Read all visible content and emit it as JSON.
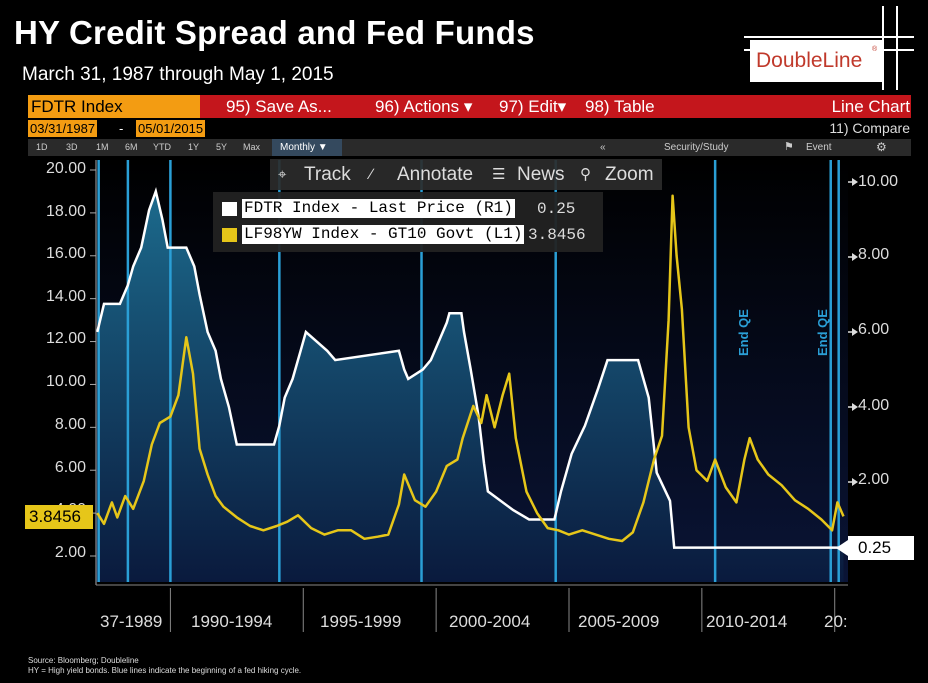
{
  "header": {
    "title": "HY Credit Spread and Fed Funds",
    "subtitle": "March 31, 1987 through May 1, 2015",
    "logo": "DoubleLine",
    "logo_mark": "®"
  },
  "terminal": {
    "ticker": "FDTR Index",
    "menu": [
      "95) Save As...",
      "96) Actions ▾",
      "97) Edit▾",
      "98) Table"
    ],
    "chart_type": "Line Chart",
    "start_date": "03/31/1987",
    "end_date": "05/01/2015",
    "date_sep": "-",
    "compare": "11) Compare",
    "timeframes": [
      "1D",
      "3D",
      "1M",
      "6M",
      "YTD",
      "1Y",
      "5Y",
      "Max"
    ],
    "frequency": "Monthly ▼",
    "right_tools": [
      "«",
      "Security/Study",
      "Event",
      "⚙"
    ],
    "tools": [
      "Track",
      "Annotate",
      "News",
      "Zoom"
    ]
  },
  "legend": {
    "items": [
      {
        "label": "FDTR Index - Last Price (R1)",
        "value": "0.25",
        "color": "#ffffff"
      },
      {
        "label": "LF98YW Index - GT10 Govt (L1)",
        "value": "3.8456",
        "color": "#e6c619"
      }
    ]
  },
  "current_values": {
    "left": "3.8456",
    "right": "0.25"
  },
  "annotations": [
    "End QE",
    "End QE"
  ],
  "footnotes": [
    "Source: Bloomberg; Doubleline",
    "HY = High yield bonds. Blue lines indicate the beginning of a fed hiking cycle."
  ],
  "colors": {
    "hy_line": "#e6c619",
    "fed_line": "#ffffff",
    "hike_line": "#2a9fd6",
    "menu_bar": "#c4161c",
    "ticker_box": "#f39c12"
  },
  "chart_data": {
    "type": "line",
    "x_tick_labels": [
      "37-1989",
      "1990-1994",
      "1995-1999",
      "2000-2004",
      "2005-2009",
      "2010-2014",
      "20:"
    ],
    "left_axis": {
      "ticks": [
        "20.00",
        "18.00",
        "16.00",
        "14.00",
        "12.00",
        "10.00",
        "8.00",
        "6.00",
        "4.00",
        "2.00"
      ],
      "ylim": [
        0.8,
        20.2
      ]
    },
    "right_axis": {
      "ticks": [
        "10.00",
        "8.00",
        "6.00",
        "4.00",
        "2.00"
      ],
      "ylim": [
        0,
        10.2
      ]
    },
    "series": [
      {
        "name": "LF98YW Index - GT10 Govt (L1)",
        "axis": "left",
        "x": [
          1987.25,
          1987.5,
          1987.8,
          1988.0,
          1988.3,
          1988.6,
          1989.0,
          1989.3,
          1989.6,
          1990.0,
          1990.3,
          1990.6,
          1990.85,
          1991.1,
          1991.4,
          1991.7,
          1992.0,
          1992.5,
          1993.0,
          1993.5,
          1994.0,
          1994.4,
          1994.8,
          1995.3,
          1995.8,
          1996.3,
          1996.8,
          1997.3,
          1997.8,
          1998.2,
          1998.6,
          1998.8,
          1999.2,
          1999.6,
          2000.0,
          2000.4,
          2000.8,
          2001.0,
          2001.4,
          2001.7,
          2001.9,
          2002.2,
          2002.5,
          2002.75,
          2003.0,
          2003.4,
          2003.8,
          2004.2,
          2004.6,
          2005.0,
          2005.5,
          2006.0,
          2006.5,
          2007.0,
          2007.4,
          2007.8,
          2008.2,
          2008.5,
          2008.75,
          2008.9,
          2009.05,
          2009.25,
          2009.5,
          2009.8,
          2010.2,
          2010.5,
          2010.9,
          2011.3,
          2011.6,
          2011.8,
          2012.1,
          2012.5,
          2013.0,
          2013.5,
          2014.0,
          2014.5,
          2014.9,
          2015.1,
          2015.33
        ],
        "values": [
          4.0,
          3.5,
          4.5,
          3.8,
          4.8,
          4.2,
          5.5,
          7.2,
          8.2,
          8.5,
          9.5,
          12.2,
          10.5,
          7.0,
          5.8,
          4.8,
          4.3,
          3.8,
          3.4,
          3.2,
          3.4,
          3.6,
          3.9,
          3.3,
          3.0,
          3.2,
          3.2,
          2.8,
          2.9,
          3.0,
          4.4,
          5.8,
          4.6,
          4.3,
          5.0,
          6.2,
          6.5,
          7.5,
          9.0,
          8.2,
          9.5,
          8.0,
          9.5,
          10.5,
          7.5,
          5.0,
          4.0,
          3.3,
          3.2,
          3.0,
          3.2,
          3.0,
          2.8,
          2.7,
          3.1,
          4.5,
          6.5,
          7.6,
          13.0,
          18.8,
          16.0,
          13.5,
          8.0,
          6.0,
          5.5,
          6.5,
          5.2,
          4.5,
          6.5,
          7.5,
          6.5,
          5.8,
          5.3,
          4.6,
          4.2,
          3.7,
          3.2,
          4.5,
          3.8456
        ]
      },
      {
        "name": "FDTR Index - Last Price (R1)",
        "axis": "right",
        "x": [
          1987.25,
          1987.5,
          1987.6,
          1987.9,
          1988.1,
          1988.4,
          1988.6,
          1988.9,
          1989.2,
          1989.45,
          1989.7,
          1989.9,
          1990.6,
          1990.9,
          1991.1,
          1991.4,
          1991.7,
          1991.9,
          1992.2,
          1992.5,
          1993.0,
          1993.9,
          1994.1,
          1994.3,
          1994.6,
          1994.9,
          1995.1,
          1995.5,
          1995.9,
          1996.2,
          1998.6,
          1998.8,
          1998.95,
          1999.5,
          1999.8,
          2000.1,
          2000.4,
          2000.5,
          2000.95,
          2001.05,
          2001.3,
          2001.6,
          2001.8,
          2001.95,
          2002.9,
          2003.5,
          2004.45,
          2004.7,
          2005.1,
          2005.6,
          2006.1,
          2006.45,
          2007.6,
          2007.8,
          2008.0,
          2008.3,
          2008.8,
          2008.96,
          2015.33
        ],
        "values": [
          6.0,
          6.75,
          6.75,
          6.75,
          6.75,
          7.25,
          7.75,
          8.25,
          9.25,
          9.75,
          9.0,
          8.25,
          8.25,
          7.75,
          7.0,
          6.0,
          5.5,
          4.75,
          4.0,
          3.0,
          3.0,
          3.0,
          3.5,
          4.25,
          4.75,
          5.5,
          6.0,
          5.75,
          5.5,
          5.25,
          5.5,
          5.0,
          4.75,
          5.0,
          5.25,
          5.75,
          6.25,
          6.5,
          6.5,
          6.0,
          5.0,
          3.75,
          2.5,
          1.75,
          1.25,
          1.0,
          1.0,
          1.75,
          2.75,
          3.5,
          4.5,
          5.25,
          5.25,
          4.75,
          4.25,
          2.25,
          1.5,
          0.25,
          0.25
        ]
      }
    ],
    "hike_cycle_x": [
      1987.3,
      1988.4,
      1990.0,
      1994.1,
      1999.45,
      2004.5,
      2015.15
    ],
    "qe_end_x": [
      2010.5,
      2014.85
    ],
    "xlim": [
      1987.2,
      2015.5
    ]
  }
}
